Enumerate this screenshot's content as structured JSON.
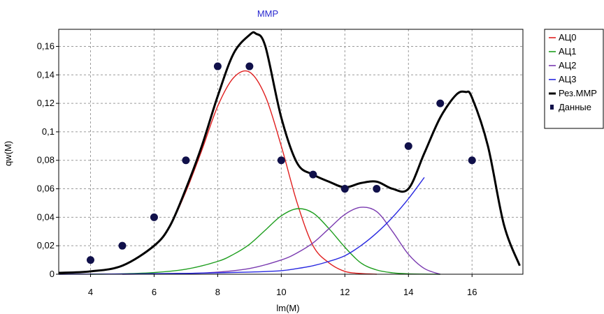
{
  "chart_data": {
    "type": "line",
    "title": "MMP",
    "xlabel": "lm(M)",
    "ylabel": "qw(M)",
    "xlim": [
      3,
      17.6
    ],
    "ylim": [
      0,
      0.172
    ],
    "x_ticks": [
      4,
      6,
      8,
      10,
      12,
      14,
      16
    ],
    "x_tick_labels": [
      "4",
      "6",
      "8",
      "10",
      "12",
      "14",
      "16"
    ],
    "y_ticks": [
      0,
      0.02,
      0.04,
      0.06,
      0.08,
      0.1,
      0.12,
      0.14,
      0.16
    ],
    "y_tick_labels": [
      "0",
      "0,02",
      "0,04",
      "0,06",
      "0,08",
      "0,1",
      "0,12",
      "0,14",
      "0,16"
    ],
    "grid": true,
    "legend_position": "right",
    "series": [
      {
        "name": "АЦ0",
        "color": "#e02020",
        "x": [
          3,
          4,
          5,
          6,
          6.5,
          7,
          7.5,
          8,
          8.5,
          9,
          9.5,
          10,
          10.5,
          11,
          11.5,
          12,
          12.5,
          13
        ],
        "y": [
          0.0005,
          0.002,
          0.006,
          0.02,
          0.034,
          0.058,
          0.087,
          0.118,
          0.138,
          0.142,
          0.125,
          0.09,
          0.05,
          0.02,
          0.008,
          0.002,
          0.0005,
          0
        ]
      },
      {
        "name": "АЦ1",
        "color": "#1e9e1e",
        "x": [
          4,
          5,
          6,
          7,
          8,
          8.5,
          9,
          9.5,
          10,
          10.5,
          11,
          11.5,
          12,
          12.5,
          13,
          13.5,
          14,
          15
        ],
        "y": [
          0,
          0.0003,
          0.0012,
          0.0035,
          0.009,
          0.014,
          0.021,
          0.031,
          0.041,
          0.046,
          0.043,
          0.032,
          0.019,
          0.008,
          0.003,
          0.001,
          0.0003,
          0
        ]
      },
      {
        "name": "АЦ2",
        "color": "#7a3ab0",
        "x": [
          5,
          7,
          8,
          9,
          10,
          10.5,
          11,
          11.5,
          12,
          12.5,
          13,
          13.5,
          14,
          14.5,
          15
        ],
        "y": [
          0,
          0.0005,
          0.0015,
          0.004,
          0.01,
          0.015,
          0.022,
          0.032,
          0.042,
          0.047,
          0.044,
          0.03,
          0.014,
          0.004,
          0
        ]
      },
      {
        "name": "АЦ3",
        "color": "#2828e0",
        "x": [
          3,
          5,
          7,
          9,
          10,
          10.5,
          11,
          11.5,
          12,
          12.5,
          13,
          13.5,
          14,
          14.5
        ],
        "y": [
          0,
          0.0002,
          0.0006,
          0.0015,
          0.0025,
          0.004,
          0.006,
          0.009,
          0.013,
          0.02,
          0.029,
          0.04,
          0.053,
          0.068
        ]
      },
      {
        "name": "Рез.MMP",
        "color": "#000000",
        "x": [
          3,
          4,
          5,
          6,
          6.5,
          7,
          7.5,
          8,
          8.5,
          9,
          9.2,
          9.5,
          10,
          10.5,
          11,
          11.5,
          12,
          12.5,
          13,
          13.5,
          14,
          14.5,
          15,
          15.5,
          15.8,
          16,
          16.5,
          17,
          17.5
        ],
        "y": [
          0.001,
          0.002,
          0.006,
          0.02,
          0.034,
          0.06,
          0.09,
          0.125,
          0.155,
          0.168,
          0.169,
          0.16,
          0.11,
          0.078,
          0.07,
          0.065,
          0.061,
          0.064,
          0.065,
          0.06,
          0.06,
          0.085,
          0.11,
          0.126,
          0.128,
          0.124,
          0.09,
          0.035,
          0.006
        ]
      }
    ],
    "scatter": {
      "name": "Данные",
      "color": "#10104a",
      "x": [
        4,
        5,
        6,
        7,
        8,
        9,
        10,
        11,
        12,
        13,
        14,
        15,
        16
      ],
      "y": [
        0.01,
        0.02,
        0.04,
        0.08,
        0.146,
        0.146,
        0.08,
        0.07,
        0.06,
        0.06,
        0.09,
        0.12,
        0.08
      ]
    }
  }
}
